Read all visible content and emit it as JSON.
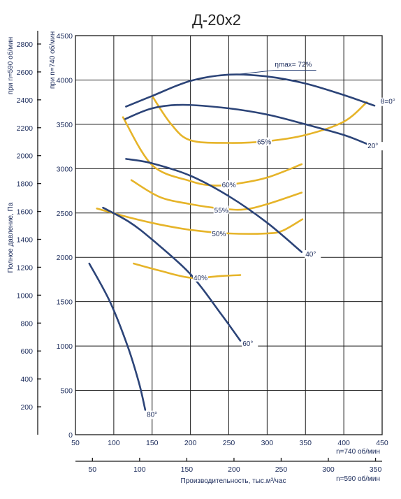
{
  "chart_data": {
    "type": "line",
    "title": "Д-20x2",
    "grid": true,
    "x_axes": [
      {
        "label": "n=740 об/мин",
        "ticks": [
          "50",
          "100",
          "150",
          "200",
          "250",
          "300",
          "350",
          "400",
          "450"
        ],
        "range": [
          50,
          450
        ]
      },
      {
        "label": "n=590 об/мин",
        "ticks": [
          "50",
          "100",
          "150",
          "200",
          "250",
          "300",
          "350"
        ],
        "range": [
          32,
          357
        ]
      }
    ],
    "x_title": "Производительность, тыс.м³/час",
    "y_axes": [
      {
        "label": "при n=740 об/мин",
        "ticks": [
          "0",
          "500",
          "1000",
          "1500",
          "2000",
          "2500",
          "3000",
          "3500",
          "4000",
          "4500"
        ],
        "range": [
          0,
          4500
        ]
      },
      {
        "label": "при n=590 об/мин",
        "ticks": [
          "200",
          "400",
          "600",
          "800",
          "1000",
          "1200",
          "1400",
          "1600",
          "1800",
          "2000",
          "2200",
          "2400",
          "2600",
          "2800"
        ],
        "range": [
          0,
          2860
        ]
      }
    ],
    "y_title": "Полное давление,  Па",
    "angle_curves": [
      {
        "label": "θ=0°",
        "points": [
          [
            116,
            3700
          ],
          [
            150,
            3820
          ],
          [
            200,
            3990
          ],
          [
            250,
            4060
          ],
          [
            300,
            4040
          ],
          [
            350,
            3960
          ],
          [
            400,
            3830
          ],
          [
            440,
            3710
          ]
        ]
      },
      {
        "label": "20°",
        "points": [
          [
            115,
            3560
          ],
          [
            150,
            3680
          ],
          [
            190,
            3720
          ],
          [
            250,
            3680
          ],
          [
            300,
            3610
          ],
          [
            350,
            3500
          ],
          [
            400,
            3380
          ],
          [
            430,
            3280
          ]
        ]
      },
      {
        "label": "40°",
        "points": [
          [
            116,
            3110
          ],
          [
            150,
            3060
          ],
          [
            200,
            2920
          ],
          [
            250,
            2690
          ],
          [
            300,
            2390
          ],
          [
            345,
            2060
          ]
        ]
      },
      {
        "label": "60°",
        "points": [
          [
            86,
            2560
          ],
          [
            120,
            2400
          ],
          [
            150,
            2200
          ],
          [
            200,
            1810
          ],
          [
            240,
            1360
          ],
          [
            265,
            1060
          ]
        ]
      },
      {
        "label": "80°",
        "points": [
          [
            68,
            1930
          ],
          [
            95,
            1500
          ],
          [
            118,
            1000
          ],
          [
            133,
            580
          ],
          [
            141,
            280
          ]
        ]
      }
    ],
    "efficiency_curves": [
      {
        "label": "65%",
        "points": [
          [
            150,
            3820
          ],
          [
            175,
            3500
          ],
          [
            200,
            3320
          ],
          [
            250,
            3290
          ],
          [
            300,
            3310
          ],
          [
            350,
            3380
          ],
          [
            400,
            3530
          ],
          [
            430,
            3750
          ]
        ]
      },
      {
        "label": "60%",
        "points": [
          [
            112,
            3580
          ],
          [
            150,
            3040
          ],
          [
            200,
            2860
          ],
          [
            230,
            2810
          ],
          [
            260,
            2830
          ],
          [
            300,
            2900
          ],
          [
            345,
            3050
          ]
        ]
      },
      {
        "label": "55%",
        "points": [
          [
            123,
            2870
          ],
          [
            160,
            2680
          ],
          [
            200,
            2600
          ],
          [
            240,
            2550
          ],
          [
            270,
            2540
          ],
          [
            300,
            2600
          ],
          [
            345,
            2730
          ]
        ]
      },
      {
        "label": "50%",
        "points": [
          [
            78,
            2550
          ],
          [
            120,
            2450
          ],
          [
            160,
            2370
          ],
          [
            200,
            2310
          ],
          [
            250,
            2270
          ],
          [
            300,
            2270
          ],
          [
            320,
            2300
          ],
          [
            346,
            2430
          ]
        ]
      },
      {
        "label": "40%",
        "points": [
          [
            126,
            1930
          ],
          [
            160,
            1850
          ],
          [
            200,
            1770
          ],
          [
            240,
            1790
          ],
          [
            265,
            1800
          ]
        ]
      }
    ],
    "annotation": {
      "text": "ηmax= 72%"
    },
    "colors": {
      "angle": "#2c4478",
      "efficiency": "#e6b429",
      "grid": "#1a1a1a",
      "text": "#1a2a5a"
    }
  }
}
